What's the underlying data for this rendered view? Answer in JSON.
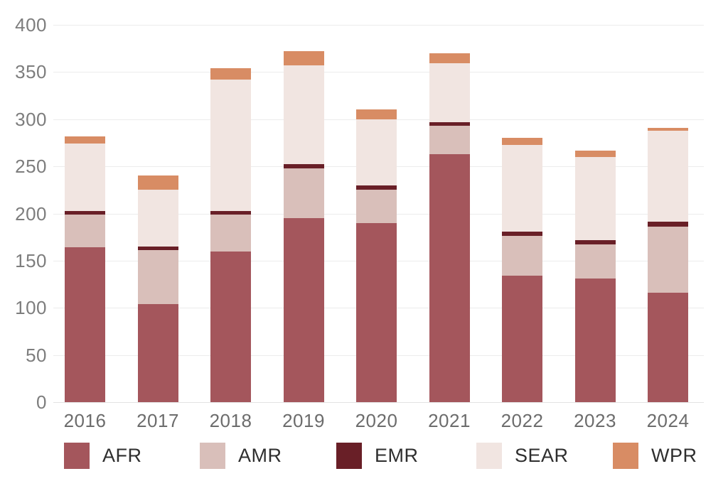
{
  "chart_data": {
    "type": "bar",
    "stacked": true,
    "title": "",
    "xlabel": "",
    "ylabel": "",
    "ylim": [
      0,
      400
    ],
    "ytick_step": 50,
    "yticks": [
      "0",
      "50",
      "100",
      "150",
      "200",
      "250",
      "300",
      "350",
      "400"
    ],
    "grid": true,
    "legend_position": "bottom",
    "categories": [
      "2016",
      "2017",
      "2018",
      "2019",
      "2020",
      "2021",
      "2022",
      "2023",
      "2024"
    ],
    "series": [
      {
        "name": "AFR",
        "color": "#a4565c",
        "values": [
          164,
          104,
          160,
          195,
          190,
          263,
          134,
          131,
          116
        ]
      },
      {
        "name": "AMR",
        "color": "#d9bfba",
        "values": [
          35,
          57,
          39,
          53,
          35,
          30,
          42,
          36,
          70
        ]
      },
      {
        "name": "EMR",
        "color": "#691f27",
        "values": [
          4,
          4,
          4,
          4,
          5,
          4,
          5,
          5,
          5
        ]
      },
      {
        "name": "SEAR",
        "color": "#f1e5e1",
        "values": [
          71,
          60,
          139,
          105,
          70,
          62,
          92,
          88,
          97
        ]
      },
      {
        "name": "WPR",
        "color": "#d88c64",
        "values": [
          8,
          15,
          12,
          15,
          10,
          11,
          7,
          7,
          3
        ]
      }
    ],
    "totals": [
      282,
      240,
      354,
      372,
      310,
      370,
      280,
      267,
      291
    ]
  }
}
